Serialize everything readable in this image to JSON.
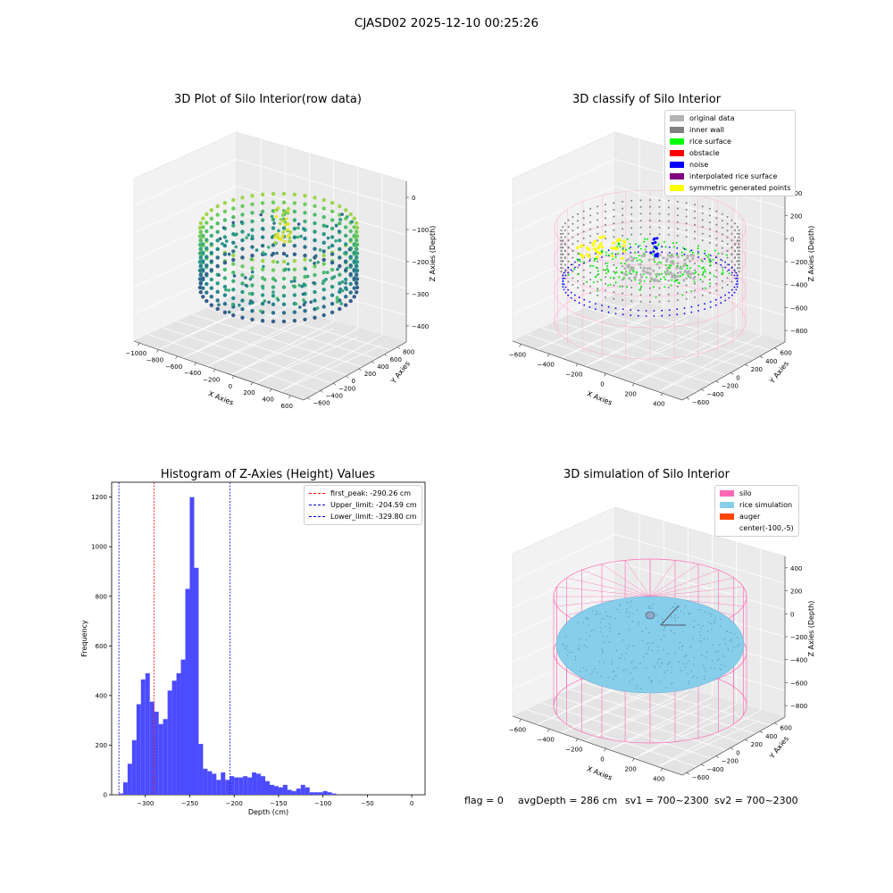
{
  "suptitle": "CJASD02 2025-12-10 00:25:26",
  "status": {
    "flag": "flag = 0",
    "avg_depth": "avgDepth = 286 cm",
    "sv1": "sv1 = 700~2300",
    "sv2": "sv2 = 700~2300"
  },
  "chart_data": [
    {
      "type": "scatter",
      "title": "3D Plot of Silo Interior(row data)",
      "xlabel": "X Axies",
      "ylabel": "Y Axies",
      "zlabel": "Z Axies (Depth)",
      "x_ticks": [
        "−1000",
        "−800",
        "−600",
        "−400",
        "−200",
        "0",
        "200",
        "400",
        "600"
      ],
      "y_ticks": [
        "−600",
        "−400",
        "−200",
        "0",
        "200",
        "400",
        "600",
        "800"
      ],
      "z_ticks": [
        "0",
        "−100",
        "−200",
        "−300",
        "−400"
      ],
      "colormap": "viridis"
    },
    {
      "type": "scatter",
      "title": "3D classify of Silo Interior",
      "xlabel": "X Axies",
      "ylabel": "Y Axies",
      "zlabel": "Z Axies (Depth)",
      "x_ticks": [
        "−600",
        "−400",
        "−200",
        "0",
        "200",
        "400"
      ],
      "y_ticks": [
        "−600",
        "−400",
        "−200",
        "0",
        "200",
        "400",
        "600"
      ],
      "z_ticks": [
        "400",
        "200",
        "0",
        "−200",
        "−400",
        "−600",
        "−800"
      ],
      "legend": [
        {
          "label": "original data",
          "color": "#b3b3b3"
        },
        {
          "label": "inner wall",
          "color": "#808080"
        },
        {
          "label": "rice surface",
          "color": "#00ff00"
        },
        {
          "label": "obstacle",
          "color": "#ff0000"
        },
        {
          "label": "noise",
          "color": "#0000ff"
        },
        {
          "label": "interpolated rice surface",
          "color": "#800080"
        },
        {
          "label": "symmetric generated points",
          "color": "#ffff00"
        }
      ],
      "legend_position": "upper right"
    },
    {
      "type": "bar",
      "title": "Histogram of Z-Axies (Height) Values",
      "xlabel": "Depth (cm)",
      "ylabel": "Frequency",
      "xlim": [
        -338,
        15
      ],
      "ylim": [
        0,
        1260
      ],
      "x_ticks": [
        -300,
        -250,
        -200,
        -150,
        -100,
        -50,
        0
      ],
      "y_ticks": [
        0,
        200,
        400,
        600,
        800,
        1000,
        1200
      ],
      "bar_color": "#4b4bff",
      "bin_width": 5,
      "bins": [
        {
          "x": -327.5,
          "value": 5
        },
        {
          "x": -322.5,
          "value": 50
        },
        {
          "x": -317.5,
          "value": 125
        },
        {
          "x": -312.5,
          "value": 220
        },
        {
          "x": -307.5,
          "value": 365
        },
        {
          "x": -302.5,
          "value": 465
        },
        {
          "x": -297.5,
          "value": 490
        },
        {
          "x": -292.5,
          "value": 375
        },
        {
          "x": -287.5,
          "value": 335
        },
        {
          "x": -282.5,
          "value": 285
        },
        {
          "x": -277.5,
          "value": 305
        },
        {
          "x": -272.5,
          "value": 420
        },
        {
          "x": -267.5,
          "value": 460
        },
        {
          "x": -262.5,
          "value": 490
        },
        {
          "x": -257.5,
          "value": 545
        },
        {
          "x": -252.5,
          "value": 830
        },
        {
          "x": -247.5,
          "value": 1200
        },
        {
          "x": -242.5,
          "value": 915
        },
        {
          "x": -237.5,
          "value": 205
        },
        {
          "x": -232.5,
          "value": 105
        },
        {
          "x": -227.5,
          "value": 95
        },
        {
          "x": -222.5,
          "value": 85
        },
        {
          "x": -217.5,
          "value": 60
        },
        {
          "x": -212.5,
          "value": 90
        },
        {
          "x": -207.5,
          "value": 60
        },
        {
          "x": -202.5,
          "value": 75
        },
        {
          "x": -197.5,
          "value": 70
        },
        {
          "x": -192.5,
          "value": 70
        },
        {
          "x": -187.5,
          "value": 75
        },
        {
          "x": -182.5,
          "value": 70
        },
        {
          "x": -177.5,
          "value": 90
        },
        {
          "x": -172.5,
          "value": 85
        },
        {
          "x": -167.5,
          "value": 75
        },
        {
          "x": -162.5,
          "value": 55
        },
        {
          "x": -157.5,
          "value": 40
        },
        {
          "x": -152.5,
          "value": 35
        },
        {
          "x": -147.5,
          "value": 30
        },
        {
          "x": -142.5,
          "value": 40
        },
        {
          "x": -137.5,
          "value": 20
        },
        {
          "x": -132.5,
          "value": 15
        },
        {
          "x": -127.5,
          "value": 25
        },
        {
          "x": -122.5,
          "value": 40
        },
        {
          "x": -117.5,
          "value": 30
        },
        {
          "x": -112.5,
          "value": 10
        },
        {
          "x": -107.5,
          "value": 10
        },
        {
          "x": -102.5,
          "value": 10
        },
        {
          "x": -97.5,
          "value": 15
        },
        {
          "x": -92.5,
          "value": 10
        },
        {
          "x": -87.5,
          "value": 5
        }
      ],
      "vlines": [
        {
          "label": "first_peak: -290.26 cm",
          "x": -290.26,
          "color": "#ff0000"
        },
        {
          "label": "Upper_limit: -204.59 cm",
          "x": -204.59,
          "color": "#0000cc"
        },
        {
          "label": "Lower_limit: -329.80 cm",
          "x": -329.8,
          "color": "#0000cc"
        }
      ],
      "legend_position": "upper right"
    },
    {
      "type": "scatter",
      "title": "3D simulation of Silo Interior",
      "xlabel": "X Axies",
      "ylabel": "Y Axies",
      "zlabel": "Z Axies (Depth)",
      "x_ticks": [
        "−600",
        "−400",
        "−200",
        "0",
        "200",
        "400"
      ],
      "y_ticks": [
        "−600",
        "−400",
        "−200",
        "0",
        "200",
        "400",
        "600"
      ],
      "z_ticks": [
        "400",
        "200",
        "0",
        "−200",
        "−400",
        "−600",
        "−800"
      ],
      "legend": [
        {
          "label": "silo",
          "color": "#ff69b4"
        },
        {
          "label": "rice simulation",
          "color": "#87ceeb"
        },
        {
          "label": "auger",
          "color": "#ff4500"
        },
        {
          "label": "center(-100,-5)",
          "color": ""
        }
      ],
      "legend_position": "upper right"
    }
  ]
}
